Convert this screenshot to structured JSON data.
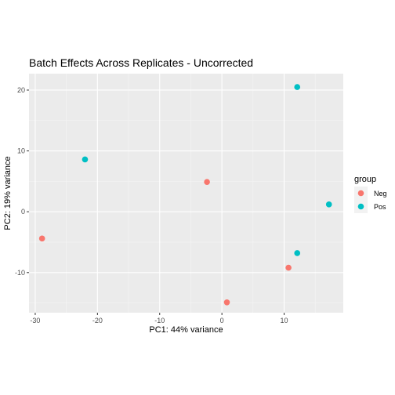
{
  "chart_data": {
    "type": "scatter",
    "title": "Batch Effects Across Replicates - Uncorrected",
    "xlabel": "PC1: 44% variance",
    "ylabel": "PC2: 19% variance",
    "xlim": [
      -31,
      19.5
    ],
    "ylim": [
      -16.6,
      22.7
    ],
    "x_ticks": [
      -30,
      -20,
      -10,
      0,
      10
    ],
    "y_ticks": [
      -10,
      0,
      10,
      20
    ],
    "grid": true,
    "legend": {
      "title": "group",
      "position": "right"
    },
    "series": [
      {
        "name": "Neg",
        "color": "#F8766D",
        "points": [
          {
            "x": -28.9,
            "y": -4.4
          },
          {
            "x": -2.4,
            "y": 4.9
          },
          {
            "x": 10.7,
            "y": -9.2
          },
          {
            "x": 0.8,
            "y": -14.9
          }
        ]
      },
      {
        "name": "Pos",
        "color": "#00BFC4",
        "points": [
          {
            "x": -22.0,
            "y": 8.6
          },
          {
            "x": 12.1,
            "y": 20.5
          },
          {
            "x": 17.2,
            "y": 1.2
          },
          {
            "x": 12.1,
            "y": -6.8
          }
        ]
      }
    ]
  }
}
